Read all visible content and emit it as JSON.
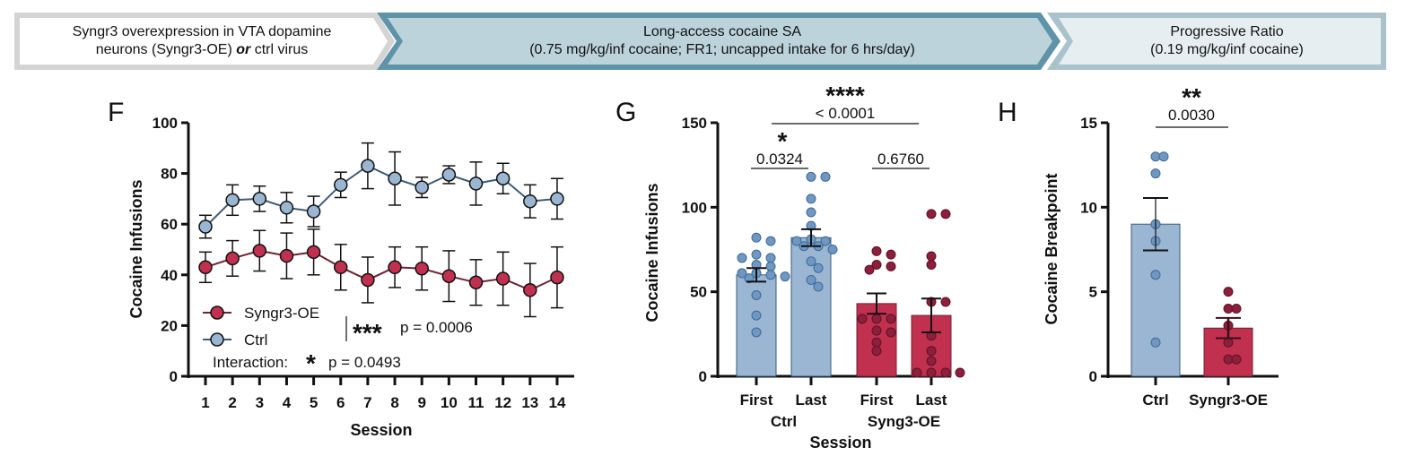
{
  "banner": {
    "steps": [
      {
        "line1": "Syngr3 overexpression in VTA dopamine",
        "line2_pre": "neurons (Syngr3-OE) ",
        "line2_em": "or",
        "line2_post": " ctrl virus"
      },
      {
        "line1": "Long-access cocaine SA",
        "line2": "(0.75 mg/kg/inf cocaine; FR1; uncapped intake for 6 hrs/day)"
      },
      {
        "line1": "Progressive Ratio",
        "line2": "(0.19 mg/kg/inf cocaine)"
      }
    ],
    "colors": {
      "step1_fill": "#ffffff",
      "step1_border": "#d4d4d4",
      "step2_fill": "#bcd3dc",
      "step2_border": "#5f93a8",
      "step3_fill": "#e6eef1",
      "step3_border": "#a9c2cc"
    }
  },
  "colors": {
    "ctrl": "#9ab6d3",
    "ctrl_line": "#3b5a78",
    "ctrl_dot": "#6f97c2",
    "syngr3": "#c1314f",
    "syngr3_line": "#6e2335",
    "syngr3_dot": "#8e1f3c"
  },
  "chart_data": [
    {
      "panel": "F",
      "type": "line",
      "xlabel": "Session",
      "ylabel": "Cocaine Infusions",
      "ylim": [
        0,
        100
      ],
      "yticks": [
        0,
        20,
        40,
        60,
        80,
        100
      ],
      "x": [
        1,
        2,
        3,
        4,
        5,
        6,
        7,
        8,
        9,
        10,
        11,
        12,
        13,
        14
      ],
      "series": [
        {
          "name": "Ctrl",
          "values": [
            59,
            69.5,
            70,
            66.5,
            65,
            75.5,
            83,
            78,
            74.5,
            79.5,
            76,
            78,
            69,
            70
          ],
          "sem": [
            4.5,
            6,
            5,
            6,
            6,
            5,
            9,
            10.5,
            4,
            3.5,
            8.5,
            6,
            6.5,
            8
          ]
        },
        {
          "name": "Syngr3-OE",
          "values": [
            43,
            46.5,
            49.5,
            47.5,
            49,
            43,
            38,
            43,
            42.5,
            39.5,
            37,
            38.5,
            34,
            39
          ],
          "sem": [
            6,
            7,
            8,
            9,
            9,
            9,
            9,
            8,
            8.5,
            10,
            9,
            10.5,
            10.5,
            12
          ]
        }
      ],
      "legend": [
        {
          "label": "Syngr3-OE"
        },
        {
          "label": "Ctrl"
        }
      ],
      "annotations": {
        "group_stars": "***",
        "group_p": "p = 0.0006",
        "interaction_label": "Interaction:",
        "interaction_stars": "*",
        "interaction_p": "p = 0.0493"
      }
    },
    {
      "panel": "G",
      "type": "bar",
      "xlabel": "Session",
      "ylabel": "Cocaine Infusions",
      "ylim": [
        0,
        150
      ],
      "yticks": [
        0,
        50,
        100,
        150
      ],
      "categories": [
        "First",
        "Last",
        "First",
        "Last"
      ],
      "groups": [
        "Ctrl",
        "Syng3-OE"
      ],
      "values": [
        60,
        82,
        43,
        36
      ],
      "sem": [
        4,
        5,
        6,
        10
      ],
      "points": [
        [
          82,
          80,
          72,
          70,
          70,
          66,
          65,
          61,
          61,
          60,
          59,
          58,
          48,
          36,
          26
        ],
        [
          118,
          118,
          105,
          97,
          89,
          81,
          80,
          80,
          77,
          77,
          75,
          68,
          64,
          57,
          53
        ],
        [
          74,
          72,
          66,
          65,
          63,
          34,
          34,
          34,
          27,
          26,
          20,
          15
        ],
        [
          96,
          96,
          71,
          66,
          44,
          44,
          24,
          15,
          9,
          1,
          0,
          0,
          0
        ]
      ],
      "comparisons": [
        {
          "label": "0.0324",
          "stars": "*"
        },
        {
          "label": "0.6760",
          "stars": ""
        },
        {
          "label": "< 0.0001",
          "stars": "****"
        }
      ]
    },
    {
      "panel": "H",
      "type": "bar",
      "xlabel": "",
      "ylabel": "Cocaine Breakpoint",
      "ylim": [
        0,
        15
      ],
      "yticks": [
        0,
        5,
        10,
        15
      ],
      "categories": [
        "Ctrl",
        "Syngr3-OE"
      ],
      "values": [
        9,
        2.85
      ],
      "sem": [
        1.55,
        0.6
      ],
      "points": [
        [
          13,
          13,
          12,
          9,
          8,
          6,
          2
        ],
        [
          5,
          4,
          4,
          3,
          2,
          1,
          1
        ]
      ],
      "comparisons": [
        {
          "label": "0.0030",
          "stars": "**"
        }
      ]
    }
  ]
}
